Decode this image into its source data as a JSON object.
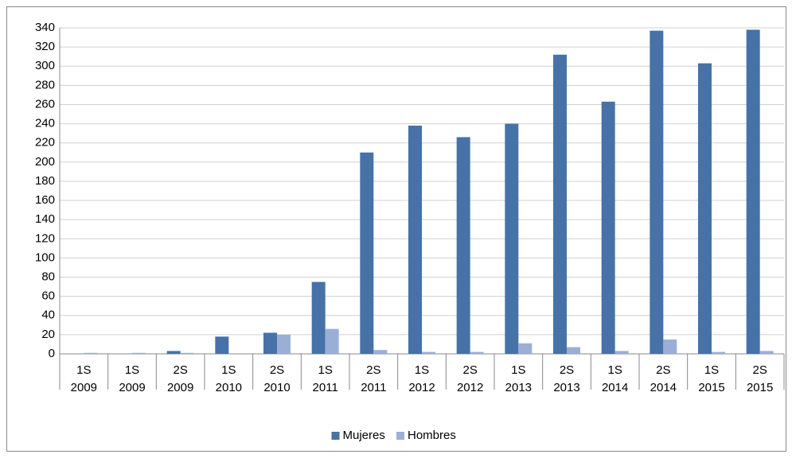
{
  "chart_data": {
    "type": "bar",
    "categories": [
      [
        "1S",
        "2009"
      ],
      [
        "1S",
        "2009"
      ],
      [
        "2S",
        "2009"
      ],
      [
        "1S",
        "2010"
      ],
      [
        "2S",
        "2010"
      ],
      [
        "1S",
        "2011"
      ],
      [
        "2S",
        "2011"
      ],
      [
        "1S",
        "2012"
      ],
      [
        "2S",
        "2012"
      ],
      [
        "1S",
        "2013"
      ],
      [
        "2S",
        "2013"
      ],
      [
        "1S",
        "2014"
      ],
      [
        "2S",
        "2014"
      ],
      [
        "1S",
        "2015"
      ],
      [
        "2S",
        "2015"
      ]
    ],
    "series": [
      {
        "name": "Mujeres",
        "color": "#4672a8",
        "values": [
          0,
          0,
          3,
          18,
          22,
          75,
          210,
          238,
          226,
          240,
          312,
          263,
          337,
          303,
          338
        ]
      },
      {
        "name": "Hombres",
        "color": "#9bafd6",
        "values": [
          1,
          1,
          1,
          0,
          20,
          26,
          4,
          2,
          2,
          11,
          7,
          3,
          15,
          2,
          3
        ]
      }
    ],
    "ylim": [
      0,
      340
    ],
    "yticks": [
      0,
      20,
      40,
      60,
      80,
      100,
      120,
      140,
      160,
      180,
      200,
      220,
      240,
      260,
      280,
      300,
      320,
      340
    ],
    "grid": true,
    "legend": "bottom"
  }
}
